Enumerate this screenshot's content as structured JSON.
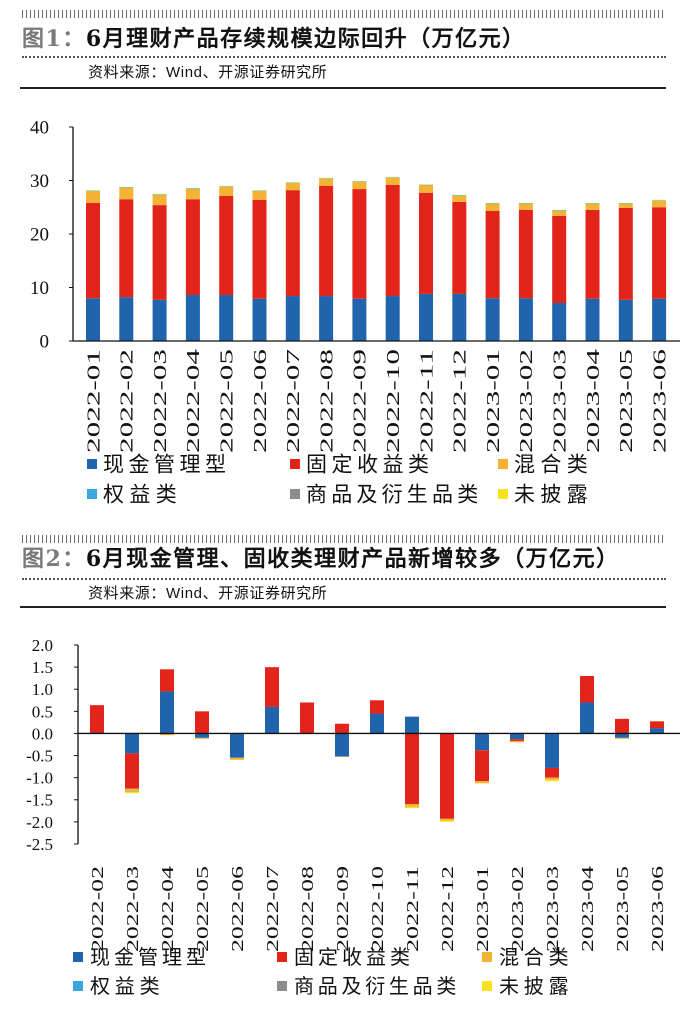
{
  "chart_data": [
    {
      "type": "bar",
      "stacked": true,
      "figure_label": "图1：",
      "title": "6月理财产品存续规模边际回升（万亿元）",
      "source": "资料来源：Wind、开源证券研究所",
      "categories": [
        "2022-01",
        "2022-02",
        "2022-03",
        "2022-04",
        "2022-05",
        "2022-06",
        "2022-07",
        "2022-08",
        "2022-09",
        "2022-10",
        "2022-11",
        "2022-12",
        "2023-01",
        "2023-02",
        "2023-03",
        "2023-04",
        "2023-05",
        "2023-06"
      ],
      "ylim": [
        0,
        40
      ],
      "yticks": [
        0,
        10,
        20,
        30,
        40
      ],
      "ytick_labels": [
        "0",
        "10",
        "20",
        "30",
        "40"
      ],
      "grid": false,
      "legend_position": "bottom",
      "series": [
        {
          "name": "现金管理型",
          "color": "#2064ae",
          "values": [
            8.0,
            8.2,
            7.7,
            8.6,
            8.6,
            7.9,
            8.4,
            8.4,
            7.9,
            8.4,
            8.8,
            8.8,
            8.0,
            8.0,
            7.1,
            7.9,
            7.7,
            7.9
          ]
        },
        {
          "name": "固定收益类",
          "color": "#e3241b",
          "values": [
            17.8,
            18.3,
            17.7,
            17.9,
            18.5,
            18.5,
            19.8,
            20.6,
            20.5,
            20.8,
            18.9,
            17.2,
            16.3,
            16.5,
            16.3,
            16.6,
            17.2,
            17.1
          ]
        },
        {
          "name": "混合类",
          "color": "#f5b335",
          "values": [
            2.2,
            2.1,
            1.9,
            1.9,
            1.7,
            1.6,
            1.3,
            1.3,
            1.3,
            1.3,
            1.4,
            1.1,
            1.3,
            1.1,
            0.9,
            1.1,
            0.7,
            1.2
          ]
        },
        {
          "name": "权益类",
          "color": "#3ea6de",
          "values": [
            0.1,
            0.1,
            0.1,
            0.1,
            0.1,
            0.1,
            0.1,
            0.1,
            0.1,
            0.1,
            0.1,
            0.1,
            0.1,
            0.1,
            0.1,
            0.1,
            0.1,
            0.1
          ]
        },
        {
          "name": "商品及衍生品类",
          "color": "#8c8c8c",
          "values": [
            0.0,
            0.0,
            0.0,
            0.0,
            0.0,
            0.0,
            0.0,
            0.0,
            0.0,
            0.0,
            0.0,
            0.0,
            0.0,
            0.0,
            0.0,
            0.0,
            0.0,
            0.0
          ]
        },
        {
          "name": "未披露",
          "color": "#f7e31f",
          "values": [
            0.1,
            0.1,
            0.1,
            0.1,
            0.1,
            0.1,
            0.1,
            0.1,
            0.1,
            0.1,
            0.1,
            0.1,
            0.1,
            0.1,
            0.1,
            0.1,
            0.1,
            0.1
          ]
        }
      ]
    },
    {
      "type": "bar",
      "stacked": true,
      "figure_label": "图2：",
      "title": "6月现金管理、固收类理财产品新增较多（万亿元）",
      "source": "资料来源：Wind、开源证券研究所",
      "categories": [
        "2022-02",
        "2022-03",
        "2022-04",
        "2022-05",
        "2022-06",
        "2022-07",
        "2022-08",
        "2022-09",
        "2022-10",
        "2022-11",
        "2022-12",
        "2023-01",
        "2023-02",
        "2023-03",
        "2023-04",
        "2023-05",
        "2023-06"
      ],
      "ylim": [
        -2.5,
        2.0
      ],
      "yticks": [
        -2.5,
        -2.0,
        -1.5,
        -1.0,
        -0.5,
        0.0,
        0.5,
        1.0,
        1.5,
        2.0
      ],
      "ytick_labels": [
        "-2.5",
        "-2.0",
        "-1.5",
        "-1.0",
        "-0.5",
        "0.0",
        "0.5",
        "1.0",
        "1.5",
        "2.0"
      ],
      "grid": false,
      "legend_position": "bottom",
      "series": [
        {
          "name": "现金管理型",
          "color": "#2064ae",
          "values": [
            0.02,
            -0.45,
            0.95,
            -0.1,
            -0.55,
            0.6,
            0.0,
            -0.52,
            0.45,
            0.38,
            0.0,
            -0.38,
            -0.13,
            -0.78,
            0.7,
            -0.1,
            0.12
          ]
        },
        {
          "name": "固定收益类",
          "color": "#e3241b",
          "values": [
            0.62,
            -0.8,
            0.5,
            0.5,
            0.0,
            0.9,
            0.7,
            0.22,
            0.3,
            -1.6,
            -1.93,
            -0.7,
            -0.04,
            -0.22,
            0.6,
            0.33,
            0.15
          ]
        },
        {
          "name": "混合类",
          "color": "#f5b335",
          "values": [
            0.0,
            -0.06,
            -0.04,
            -0.02,
            -0.04,
            0.0,
            0.0,
            -0.01,
            0.0,
            -0.06,
            -0.04,
            -0.04,
            -0.03,
            -0.05,
            0.0,
            -0.02,
            0.01
          ]
        },
        {
          "name": "权益类",
          "color": "#3ea6de",
          "values": [
            0.0,
            -0.01,
            0.0,
            0.0,
            0.0,
            0.0,
            0.0,
            0.0,
            0.0,
            0.0,
            0.0,
            0.0,
            0.0,
            0.0,
            0.0,
            0.0,
            0.0
          ]
        },
        {
          "name": "商品及衍生品类",
          "color": "#8c8c8c",
          "values": [
            0.0,
            0.0,
            0.0,
            0.0,
            0.0,
            0.0,
            0.0,
            0.0,
            0.0,
            0.0,
            0.0,
            0.0,
            0.0,
            0.0,
            0.0,
            0.0,
            0.0
          ]
        },
        {
          "name": "未披露",
          "color": "#f7e31f",
          "values": [
            0.0,
            -0.03,
            0.0,
            0.0,
            -0.01,
            0.0,
            0.0,
            0.0,
            0.0,
            -0.03,
            -0.03,
            -0.01,
            0.0,
            -0.03,
            0.0,
            0.0,
            0.0
          ]
        }
      ]
    }
  ]
}
